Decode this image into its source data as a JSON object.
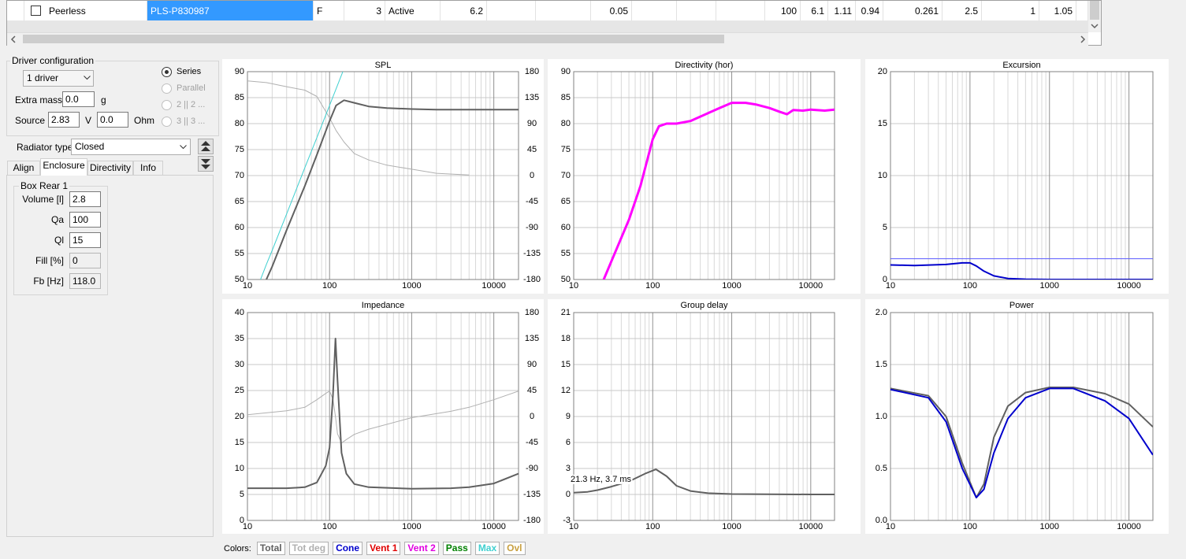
{
  "table": {
    "row": [
      "Peerless",
      "PLS-P830987",
      "F",
      "3",
      "Active",
      "6.2",
      "0.05",
      "100",
      "6.1",
      "1.11",
      "0.94",
      "0.261",
      "2.5",
      "1",
      "1.05"
    ]
  },
  "driver_config": {
    "title": "Driver configuration",
    "drivers": "1 driver",
    "extra_mass_label": "Extra mass",
    "extra_mass": "0.0",
    "extra_mass_unit": "g",
    "source_label": "Source",
    "source_voltage": "2.83",
    "voltage_unit": "V",
    "source_resistance": "0.0",
    "resistance_unit": "Ohm",
    "connection": [
      "Series",
      "Parallel",
      "2 || 2 ...",
      "3 || 3 ..."
    ]
  },
  "radiator": {
    "label": "Radiator type",
    "value": "Closed"
  },
  "tabs": [
    "Align",
    "Enclosure",
    "Directivity",
    "Info"
  ],
  "box": {
    "title": "Box Rear 1",
    "fields": [
      {
        "label": "Volume [l]",
        "value": "2.8"
      },
      {
        "label": "Qa",
        "value": "100"
      },
      {
        "label": "Ql",
        "value": "15"
      },
      {
        "label": "Fill [%]",
        "value": "0"
      },
      {
        "label": "Fb [Hz]",
        "value": "118.0"
      }
    ]
  },
  "colors": {
    "label": "Colors:",
    "items": [
      {
        "text": "Total",
        "color": "#606060"
      },
      {
        "text": "Tot deg",
        "color": "#b0b0b0"
      },
      {
        "text": "Cone",
        "color": "#0000cc"
      },
      {
        "text": "Vent 1",
        "color": "#e00000"
      },
      {
        "text": "Vent 2",
        "color": "#e000e0"
      },
      {
        "text": "Pass",
        "color": "#008000"
      },
      {
        "text": "Max",
        "color": "#40d0d0"
      },
      {
        "text": "Ovl",
        "color": "#c8a040"
      }
    ]
  },
  "chart_data": [
    {
      "type": "line",
      "title": "SPL",
      "log_x": true,
      "grid": true,
      "xlim": [
        10,
        20000
      ],
      "xticks": [
        10,
        100,
        1000,
        10000
      ],
      "xminor": [
        20,
        30,
        40,
        50,
        60,
        70,
        80,
        90,
        200,
        300,
        400,
        500,
        600,
        700,
        800,
        900,
        2000,
        3000,
        4000,
        5000,
        6000,
        7000,
        8000,
        9000
      ],
      "ylim": [
        50,
        90
      ],
      "yticks": [
        50,
        55,
        60,
        65,
        70,
        75,
        80,
        85,
        90
      ],
      "y2lim": [
        -180,
        180
      ],
      "y2ticks": [
        -180,
        -135,
        -90,
        -45,
        0,
        45,
        90,
        135,
        180
      ],
      "x": [
        10,
        17,
        20,
        30,
        50,
        70,
        100,
        120,
        150,
        200,
        300,
        500,
        1000,
        2000,
        5000,
        10000,
        20000
      ],
      "series": [
        {
          "color": "#b0b0b0",
          "width": 1,
          "axis": "y2",
          "values": [
            164,
            161,
            159,
            154,
            148,
            137,
            100,
            78,
            58,
            38,
            27,
            18,
            11,
            4,
            1,
            null,
            null
          ]
        },
        {
          "color": "#40d0d0",
          "width": 1,
          "values": [
            43.5,
            52.9,
            55.6,
            62.6,
            71.5,
            77.3,
            83.5,
            86.7,
            90.6,
            null,
            null,
            null,
            null,
            null,
            null,
            null,
            null
          ]
        },
        {
          "color": "#606060",
          "width": 2,
          "values": [
            null,
            50,
            52.5,
            59.5,
            68,
            74,
            80.5,
            83.5,
            84.5,
            84,
            83.3,
            83,
            82.8,
            82.7,
            82.7,
            82.7,
            82.7
          ]
        }
      ]
    },
    {
      "type": "line",
      "title": "Directivity (hor)",
      "log_x": true,
      "grid": true,
      "xlim": [
        10,
        20000
      ],
      "xticks": [
        10,
        100,
        1000,
        10000
      ],
      "xminor": [
        20,
        30,
        40,
        50,
        60,
        70,
        80,
        90,
        200,
        300,
        400,
        500,
        600,
        700,
        800,
        900,
        2000,
        3000,
        4000,
        5000,
        6000,
        7000,
        8000,
        9000
      ],
      "ylim": [
        50,
        90
      ],
      "yticks": [
        50,
        55,
        60,
        65,
        70,
        75,
        80,
        85,
        90
      ],
      "x": [
        24,
        30,
        50,
        70,
        100,
        120,
        150,
        200,
        300,
        500,
        700,
        1000,
        1500,
        2000,
        3000,
        4000,
        5000,
        6000,
        8000,
        10000,
        15000,
        20000
      ],
      "series": [
        {
          "color": "#ff00ff",
          "width": 3,
          "values": [
            50,
            53.5,
            61.5,
            68,
            77,
            79.5,
            80,
            80,
            80.5,
            82,
            83,
            84,
            84,
            83.7,
            83,
            82.3,
            81.8,
            82.6,
            82.5,
            82.7,
            82.5,
            82.7
          ]
        }
      ]
    },
    {
      "type": "line",
      "title": "Excursion",
      "log_x": true,
      "grid": true,
      "xlim": [
        10,
        20000
      ],
      "xticks": [
        10,
        100,
        1000,
        10000
      ],
      "xminor": [
        20,
        30,
        40,
        50,
        60,
        70,
        80,
        90,
        200,
        300,
        400,
        500,
        600,
        700,
        800,
        900,
        2000,
        3000,
        4000,
        5000,
        6000,
        7000,
        8000,
        9000
      ],
      "ylim": [
        0,
        20
      ],
      "yticks": [
        0,
        5,
        10,
        15,
        20
      ],
      "x": [
        10,
        20,
        50,
        80,
        100,
        120,
        150,
        200,
        300,
        500,
        1000,
        10000,
        20000
      ],
      "series": [
        {
          "color": "#5a5aff",
          "width": 1,
          "x": [
            10,
            20000
          ],
          "values": [
            2,
            2
          ]
        },
        {
          "color": "#0000cc",
          "width": 2,
          "values": [
            1.4,
            1.35,
            1.45,
            1.6,
            1.6,
            1.3,
            0.8,
            0.35,
            0.1,
            0.03,
            0,
            0,
            0
          ]
        }
      ]
    },
    {
      "type": "line",
      "title": "Impedance",
      "log_x": true,
      "grid": true,
      "xlim": [
        10,
        20000
      ],
      "xticks": [
        10,
        100,
        1000,
        10000
      ],
      "xminor": [
        20,
        30,
        40,
        50,
        60,
        70,
        80,
        90,
        200,
        300,
        400,
        500,
        600,
        700,
        800,
        900,
        2000,
        3000,
        4000,
        5000,
        6000,
        7000,
        8000,
        9000
      ],
      "ylim": [
        0,
        40
      ],
      "yticks": [
        0,
        5,
        10,
        15,
        20,
        25,
        30,
        35,
        40
      ],
      "y2lim": [
        -180,
        180
      ],
      "y2ticks": [
        -180,
        -135,
        -90,
        -45,
        0,
        45,
        90,
        135,
        180
      ],
      "x": [
        10,
        30,
        50,
        70,
        90,
        100,
        110,
        118,
        125,
        140,
        160,
        200,
        300,
        1000,
        3000,
        5000,
        10000,
        20000
      ],
      "series": [
        {
          "color": "#b0b0b0",
          "width": 1,
          "axis": "y2",
          "values": [
            3,
            10,
            16,
            29,
            40,
            44,
            30,
            0,
            -30,
            -46,
            -40,
            -31,
            -22,
            -2,
            9,
            16,
            29,
            44
          ]
        },
        {
          "color": "#606060",
          "width": 2,
          "values": [
            6.2,
            6.2,
            6.4,
            7.3,
            10.5,
            14,
            24,
            35,
            27,
            13,
            9,
            7,
            6.4,
            6.1,
            6.2,
            6.4,
            7.1,
            9
          ]
        }
      ]
    },
    {
      "type": "line",
      "title": "Group delay",
      "log_x": true,
      "grid": true,
      "xlim": [
        10,
        20000
      ],
      "xticks": [
        10,
        100,
        1000,
        10000
      ],
      "xminor": [
        20,
        30,
        40,
        50,
        60,
        70,
        80,
        90,
        200,
        300,
        400,
        500,
        600,
        700,
        800,
        900,
        2000,
        3000,
        4000,
        5000,
        6000,
        7000,
        8000,
        9000
      ],
      "ylim": [
        -3,
        21
      ],
      "yticks": [
        -3,
        0,
        3,
        6,
        9,
        12,
        15,
        18,
        21
      ],
      "annotations": [
        {
          "text": "21.3 Hz, 3.7 ms"
        }
      ],
      "x": [
        10,
        15,
        20,
        30,
        50,
        80,
        110,
        150,
        200,
        300,
        500,
        1000,
        10000,
        20000
      ],
      "series": [
        {
          "color": "#606060",
          "width": 2,
          "values": [
            0.2,
            0.3,
            0.5,
            0.9,
            1.5,
            2.4,
            2.9,
            2.1,
            1,
            0.4,
            0.15,
            0.05,
            0,
            0
          ]
        }
      ]
    },
    {
      "type": "line",
      "title": "Power",
      "log_x": true,
      "grid": true,
      "xlim": [
        10,
        20000
      ],
      "xticks": [
        10,
        100,
        1000,
        10000
      ],
      "xminor": [
        20,
        30,
        40,
        50,
        60,
        70,
        80,
        90,
        200,
        300,
        400,
        500,
        600,
        700,
        800,
        900,
        2000,
        3000,
        4000,
        5000,
        6000,
        7000,
        8000,
        9000
      ],
      "ylim": [
        0,
        2
      ],
      "yticks": [
        {
          "value": 0,
          "label": "0.0"
        },
        0.5,
        {
          "value": 1,
          "label": "1.0"
        },
        1.5,
        {
          "value": 2,
          "label": "2.0"
        }
      ],
      "x": [
        10,
        30,
        50,
        80,
        120,
        150,
        200,
        300,
        500,
        1000,
        2000,
        5000,
        10000,
        20000
      ],
      "series": [
        {
          "color": "#606060",
          "width": 2,
          "values": [
            1.27,
            1.2,
            1.0,
            0.55,
            0.22,
            0.35,
            0.8,
            1.1,
            1.23,
            1.28,
            1.28,
            1.22,
            1.12,
            0.9
          ]
        },
        {
          "color": "#0000cc",
          "width": 2,
          "values": [
            1.26,
            1.18,
            0.95,
            0.5,
            0.22,
            0.3,
            0.65,
            0.98,
            1.18,
            1.27,
            1.27,
            1.15,
            0.98,
            0.63
          ]
        }
      ]
    }
  ]
}
